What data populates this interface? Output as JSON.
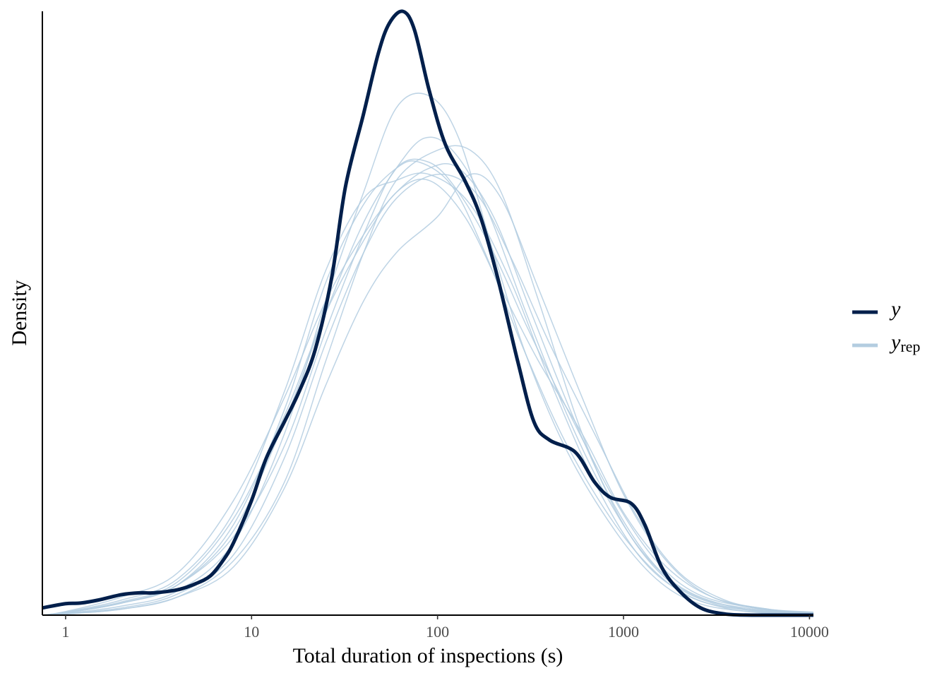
{
  "chart_data": {
    "type": "line",
    "xlabel": "Total duration of inspections (s)",
    "ylabel": "Density",
    "x_scale": "log10",
    "xlim": [
      0.75,
      10500
    ],
    "ylim": [
      0,
      1.0
    ],
    "y_ticks_shown": false,
    "grid": false,
    "legend_position": "right",
    "x_ticks": [
      {
        "value": 1,
        "label": "1"
      },
      {
        "value": 10,
        "label": "10"
      },
      {
        "value": 100,
        "label": "100"
      },
      {
        "value": 1000,
        "label": "1000"
      },
      {
        "value": 10000,
        "label": "10000"
      }
    ],
    "legend": [
      {
        "label": "y",
        "subscript": "",
        "color": "#011f4b"
      },
      {
        "label": "y",
        "subscript": "rep",
        "color": "#b3cde0"
      }
    ],
    "observed": {
      "name": "y",
      "color": "#011f4b",
      "points": [
        [
          0.75,
          0.012
        ],
        [
          1.0,
          0.019
        ],
        [
          1.2,
          0.02
        ],
        [
          1.5,
          0.025
        ],
        [
          2.0,
          0.034
        ],
        [
          2.5,
          0.037
        ],
        [
          3.0,
          0.037
        ],
        [
          4.0,
          0.042
        ],
        [
          5.0,
          0.052
        ],
        [
          6.0,
          0.065
        ],
        [
          7.0,
          0.09
        ],
        [
          8.0,
          0.12
        ],
        [
          10.0,
          0.19
        ],
        [
          12.0,
          0.26
        ],
        [
          15.0,
          0.32
        ],
        [
          18.0,
          0.37
        ],
        [
          22.0,
          0.44
        ],
        [
          27.0,
          0.56
        ],
        [
          32.0,
          0.71
        ],
        [
          40.0,
          0.83
        ],
        [
          48.0,
          0.93
        ],
        [
          55.0,
          0.98
        ],
        [
          65.0,
          1.0
        ],
        [
          75.0,
          0.97
        ],
        [
          90.0,
          0.87
        ],
        [
          110.0,
          0.78
        ],
        [
          140.0,
          0.72
        ],
        [
          170.0,
          0.66
        ],
        [
          210.0,
          0.56
        ],
        [
          270.0,
          0.42
        ],
        [
          330.0,
          0.32
        ],
        [
          400.0,
          0.29
        ],
        [
          550.0,
          0.27
        ],
        [
          700.0,
          0.22
        ],
        [
          850.0,
          0.195
        ],
        [
          1100.0,
          0.185
        ],
        [
          1300.0,
          0.15
        ],
        [
          1600.0,
          0.08
        ],
        [
          2000.0,
          0.04
        ],
        [
          2600.0,
          0.012
        ],
        [
          3500.0,
          0.002
        ],
        [
          5000.0,
          0.0
        ],
        [
          10500.0,
          0.0
        ]
      ]
    },
    "replicates": {
      "name": "y_rep",
      "color": "#b3cde0",
      "count": 10,
      "series": [
        [
          [
            0.75,
            0.0
          ],
          [
            1.0,
            0.004
          ],
          [
            2.0,
            0.02
          ],
          [
            4.0,
            0.05
          ],
          [
            8.0,
            0.15
          ],
          [
            15.0,
            0.34
          ],
          [
            25.0,
            0.55
          ],
          [
            40.0,
            0.68
          ],
          [
            60.0,
            0.74
          ],
          [
            80.0,
            0.75
          ],
          [
            120.0,
            0.71
          ],
          [
            180.0,
            0.6
          ],
          [
            300.0,
            0.43
          ],
          [
            500.0,
            0.28
          ],
          [
            900.0,
            0.15
          ],
          [
            1500.0,
            0.07
          ],
          [
            2500.0,
            0.025
          ],
          [
            5000.0,
            0.007
          ],
          [
            10500.0,
            0.002
          ]
        ],
        [
          [
            0.75,
            0.0
          ],
          [
            1.0,
            0.003
          ],
          [
            2.0,
            0.015
          ],
          [
            4.0,
            0.04
          ],
          [
            8.0,
            0.12
          ],
          [
            15.0,
            0.3
          ],
          [
            25.0,
            0.52
          ],
          [
            40.0,
            0.7
          ],
          [
            60.0,
            0.84
          ],
          [
            90.0,
            0.86
          ],
          [
            130.0,
            0.79
          ],
          [
            200.0,
            0.6
          ],
          [
            300.0,
            0.43
          ],
          [
            500.0,
            0.27
          ],
          [
            900.0,
            0.14
          ],
          [
            1500.0,
            0.06
          ],
          [
            2500.0,
            0.02
          ],
          [
            5000.0,
            0.005
          ],
          [
            10500.0,
            0.0
          ]
        ],
        [
          [
            0.75,
            0.0
          ],
          [
            1.0,
            0.005
          ],
          [
            2.0,
            0.025
          ],
          [
            4.0,
            0.06
          ],
          [
            8.0,
            0.17
          ],
          [
            15.0,
            0.37
          ],
          [
            25.0,
            0.57
          ],
          [
            40.0,
            0.69
          ],
          [
            60.0,
            0.72
          ],
          [
            90.0,
            0.73
          ],
          [
            150.0,
            0.68
          ],
          [
            250.0,
            0.55
          ],
          [
            400.0,
            0.39
          ],
          [
            700.0,
            0.22
          ],
          [
            1200.0,
            0.1
          ],
          [
            2000.0,
            0.04
          ],
          [
            3500.0,
            0.012
          ],
          [
            6000.0,
            0.004
          ],
          [
            10500.0,
            0.001
          ]
        ],
        [
          [
            0.75,
            0.0
          ],
          [
            1.0,
            0.002
          ],
          [
            2.0,
            0.01
          ],
          [
            4.0,
            0.03
          ],
          [
            8.0,
            0.09
          ],
          [
            15.0,
            0.22
          ],
          [
            25.0,
            0.42
          ],
          [
            40.0,
            0.6
          ],
          [
            60.0,
            0.72
          ],
          [
            100.0,
            0.77
          ],
          [
            150.0,
            0.77
          ],
          [
            220.0,
            0.7
          ],
          [
            350.0,
            0.52
          ],
          [
            600.0,
            0.3
          ],
          [
            1000.0,
            0.15
          ],
          [
            1700.0,
            0.06
          ],
          [
            3000.0,
            0.02
          ],
          [
            6000.0,
            0.006
          ],
          [
            10500.0,
            0.002
          ]
        ],
        [
          [
            0.75,
            0.0
          ],
          [
            1.0,
            0.004
          ],
          [
            2.0,
            0.02
          ],
          [
            4.0,
            0.05
          ],
          [
            8.0,
            0.14
          ],
          [
            15.0,
            0.32
          ],
          [
            25.0,
            0.5
          ],
          [
            40.0,
            0.65
          ],
          [
            60.0,
            0.74
          ],
          [
            85.0,
            0.79
          ],
          [
            120.0,
            0.77
          ],
          [
            180.0,
            0.68
          ],
          [
            300.0,
            0.5
          ],
          [
            500.0,
            0.33
          ],
          [
            800.0,
            0.2
          ],
          [
            1300.0,
            0.1
          ],
          [
            2200.0,
            0.04
          ],
          [
            4500.0,
            0.01
          ],
          [
            10500.0,
            0.004
          ]
        ],
        [
          [
            0.75,
            0.0
          ],
          [
            1.0,
            0.006
          ],
          [
            2.0,
            0.03
          ],
          [
            4.0,
            0.07
          ],
          [
            8.0,
            0.19
          ],
          [
            15.0,
            0.36
          ],
          [
            25.0,
            0.52
          ],
          [
            40.0,
            0.63
          ],
          [
            60.0,
            0.7
          ],
          [
            90.0,
            0.74
          ],
          [
            130.0,
            0.74
          ],
          [
            200.0,
            0.66
          ],
          [
            320.0,
            0.5
          ],
          [
            550.0,
            0.32
          ],
          [
            900.0,
            0.18
          ],
          [
            1500.0,
            0.08
          ],
          [
            2500.0,
            0.03
          ],
          [
            5000.0,
            0.01
          ],
          [
            10500.0,
            0.004
          ]
        ],
        [
          [
            0.75,
            0.0
          ],
          [
            1.0,
            0.003
          ],
          [
            2.0,
            0.012
          ],
          [
            4.0,
            0.035
          ],
          [
            8.0,
            0.1
          ],
          [
            15.0,
            0.26
          ],
          [
            25.0,
            0.45
          ],
          [
            40.0,
            0.6
          ],
          [
            60.0,
            0.69
          ],
          [
            100.0,
            0.73
          ],
          [
            160.0,
            0.7
          ],
          [
            250.0,
            0.59
          ],
          [
            400.0,
            0.45
          ],
          [
            700.0,
            0.3
          ],
          [
            1200.0,
            0.16
          ],
          [
            2000.0,
            0.07
          ],
          [
            3500.0,
            0.025
          ],
          [
            6000.0,
            0.01
          ],
          [
            10500.0,
            0.003
          ]
        ],
        [
          [
            0.75,
            0.0
          ],
          [
            1.0,
            0.005
          ],
          [
            2.0,
            0.022
          ],
          [
            4.0,
            0.055
          ],
          [
            8.0,
            0.16
          ],
          [
            15.0,
            0.33
          ],
          [
            25.0,
            0.5
          ],
          [
            40.0,
            0.62
          ],
          [
            60.0,
            0.7
          ],
          [
            90.0,
            0.72
          ],
          [
            140.0,
            0.66
          ],
          [
            220.0,
            0.54
          ],
          [
            350.0,
            0.42
          ],
          [
            600.0,
            0.3
          ],
          [
            1000.0,
            0.17
          ],
          [
            1700.0,
            0.08
          ],
          [
            3000.0,
            0.03
          ],
          [
            6000.0,
            0.008
          ],
          [
            10500.0,
            0.003
          ]
        ],
        [
          [
            0.75,
            0.0
          ],
          [
            1.0,
            0.002
          ],
          [
            2.0,
            0.01
          ],
          [
            4.0,
            0.03
          ],
          [
            8.0,
            0.08
          ],
          [
            15.0,
            0.21
          ],
          [
            25.0,
            0.38
          ],
          [
            40.0,
            0.52
          ],
          [
            60.0,
            0.6
          ],
          [
            100.0,
            0.66
          ],
          [
            150.0,
            0.73
          ],
          [
            220.0,
            0.69
          ],
          [
            350.0,
            0.54
          ],
          [
            600.0,
            0.36
          ],
          [
            1000.0,
            0.2
          ],
          [
            1700.0,
            0.09
          ],
          [
            3000.0,
            0.03
          ],
          [
            6000.0,
            0.01
          ],
          [
            10500.0,
            0.003
          ]
        ],
        [
          [
            0.75,
            0.0
          ],
          [
            1.0,
            0.004
          ],
          [
            2.0,
            0.02
          ],
          [
            4.0,
            0.05
          ],
          [
            8.0,
            0.13
          ],
          [
            15.0,
            0.28
          ],
          [
            25.0,
            0.47
          ],
          [
            40.0,
            0.63
          ],
          [
            60.0,
            0.74
          ],
          [
            90.0,
            0.75
          ],
          [
            130.0,
            0.7
          ],
          [
            200.0,
            0.6
          ],
          [
            300.0,
            0.48
          ],
          [
            500.0,
            0.34
          ],
          [
            900.0,
            0.19
          ],
          [
            1500.0,
            0.09
          ],
          [
            2500.0,
            0.035
          ],
          [
            5000.0,
            0.012
          ],
          [
            10500.0,
            0.005
          ]
        ]
      ]
    }
  }
}
